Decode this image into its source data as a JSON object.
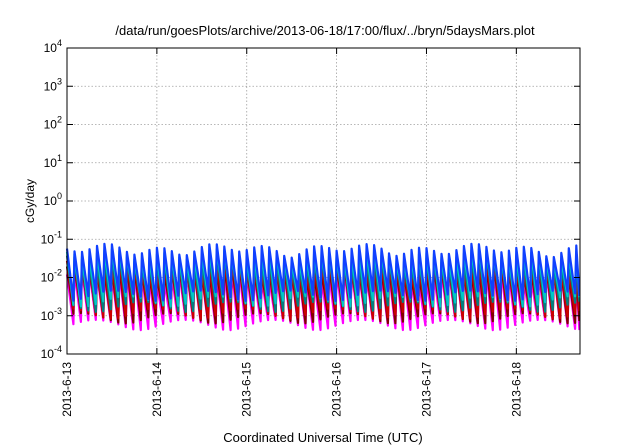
{
  "chart_data": {
    "type": "line",
    "title": "/data/run/goesPlots/archive/2013-06-18/17:00/flux/../bryn/5daysMars.plot",
    "xlabel": "Coordinated Universal Time (UTC)",
    "ylabel": "cGy/day",
    "x_scale": "time",
    "y_scale": "log",
    "xlim": [
      "2013-06-13T00:00",
      "2013-06-18T17:00"
    ],
    "ylim": [
      0.0001,
      10000
    ],
    "x_ticks": [
      "2013-6-13",
      "2013-6-14",
      "2013-6-15",
      "2013-6-16",
      "2013-6-17",
      "2013-6-18"
    ],
    "y_ticks": [
      {
        "value": 0.0001,
        "base": "10",
        "exp": "-4"
      },
      {
        "value": 0.001,
        "base": "10",
        "exp": "-3"
      },
      {
        "value": 0.01,
        "base": "10",
        "exp": "-2"
      },
      {
        "value": 0.1,
        "base": "10",
        "exp": "-1"
      },
      {
        "value": 1,
        "base": "10",
        "exp": "0"
      },
      {
        "value": 10,
        "base": "10",
        "exp": "1"
      },
      {
        "value": 100,
        "base": "10",
        "exp": "2"
      },
      {
        "value": 1000,
        "base": "10",
        "exp": "3"
      },
      {
        "value": 10000,
        "base": "10",
        "exp": "4"
      }
    ],
    "grid": true,
    "series_style": "sawtooth, ~12 oscillations per day",
    "series": [
      {
        "color": "#ff00ff",
        "peak": 0.012,
        "trough": 0.0006
      },
      {
        "color": "#800000",
        "peak": 0.017,
        "trough": 0.0009
      },
      {
        "color": "#cc0000",
        "peak": 0.022,
        "trough": 0.0012
      },
      {
        "color": "#008080",
        "peak": 0.03,
        "trough": 0.0018
      },
      {
        "color": "#00c8c8",
        "peak": 0.04,
        "trough": 0.0025
      },
      {
        "color": "#1040ff",
        "peak": 0.055,
        "trough": 0.0035
      }
    ]
  }
}
